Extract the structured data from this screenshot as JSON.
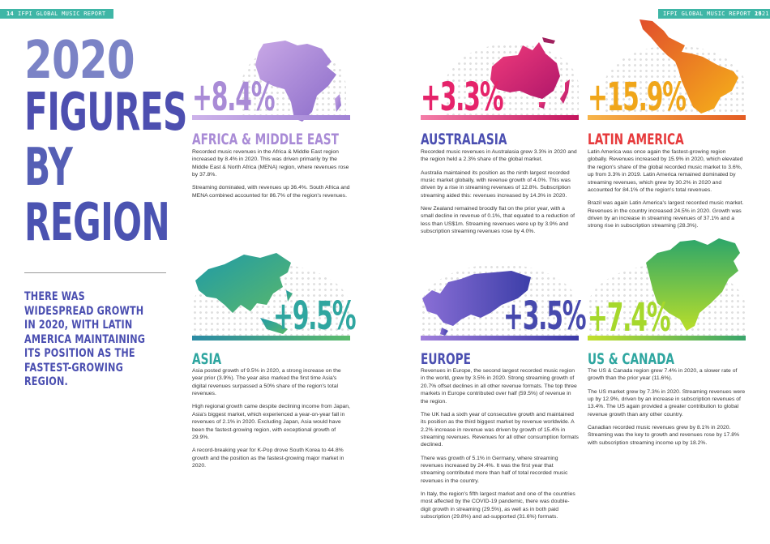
{
  "header": {
    "left_page": "14",
    "right_page": "15",
    "report_title": "IFPI GLOBAL MUSIC REPORT 2021"
  },
  "hero": {
    "line1": "2020",
    "line2": "FIGURES",
    "line3": "BY",
    "line4": "REGION",
    "tagline": "THERE WAS WIDESPREAD GROWTH IN 2020, WITH LATIN AMERICA MAINTAINING ITS POSITION AS THE FASTEST-GROWING REGION."
  },
  "colors": {
    "header_teal": "#3fb6a6",
    "africa": "#a98bd6",
    "australasia": "#e5236a",
    "latin_america": "#f0861a",
    "asia": "#2fa6a0",
    "europe": "#4649ad",
    "us_canada": "#a6d82c"
  },
  "regions": {
    "africa": {
      "percent": "+8.4%",
      "title": "AFRICA & MIDDLE EAST",
      "paras": [
        "Recorded music revenues in the Africa & Middle East region increased by 8.4% in 2020. This was driven primarily by the Middle East & North Africa (MENA) region, where revenues rose by 37.8%.",
        "Streaming dominated, with revenues up 36.4%. South Africa and MENA combined accounted for 86.7% of the region's revenues."
      ]
    },
    "australasia": {
      "percent": "+3.3%",
      "title": "AUSTRALASIA",
      "paras": [
        "Recorded music revenues in Australasia grew 3.3% in 2020 and the region held a 2.3% share of the global market.",
        "Australia maintained its position as the ninth largest recorded music market globally, with revenue growth of 4.0%. This was driven by a rise in streaming revenues of 12.8%. Subscription streaming aided this: revenues increased by 14.3% in 2020.",
        "New Zealand remained broodly flat on the prior year, with a small decline in revenue of 0.1%, that equated to a reduction of less than US$1m. Streaming revenues were up by 3.9% and subscription streaming revenues rose by 4.0%."
      ]
    },
    "latin": {
      "percent": "+15.9%",
      "title": "LATIN AMERICA",
      "paras": [
        "Latin America was once again the fastest-growing region globally. Revenues increased by 15.9% in 2020, which elevated the region's share of the global recorded music market to 3.6%, up from 3.3% in 2019. Latin America remained dominated by streaming revenues, which grew by 30.2% in 2020 and accounted for 84.1% of the region's total revenues.",
        "Brazil was again Latin America's largest recorded music market. Revenues in the country increased 24.5% in 2020. Growth was driven by an increase in streaming revenues of 37.1% and a strong rise in subscription streaming (28.3%)."
      ]
    },
    "asia": {
      "percent": "+9.5%",
      "title": "ASIA",
      "paras": [
        "Asia posted growth of 9.5% in 2020, a strong increase on the year prior (3.9%). The year also marked the first time Asia's digital revenues surpassed a 50% share of the region's total revenues.",
        "High regional growth came despite declining income from Japan, Asia's biggest market, which experienced a year-on-year fall in revenues of 2.1% in 2020. Excluding Japan, Asia would have been the fastest-growing region, with exceptional growth of 29.9%.",
        "A record-breaking year for K-Pop drove South Korea to 44.8% growth and the position as the fastest-growing major market in 2020."
      ]
    },
    "europe": {
      "percent": "+3.5%",
      "title": "EUROPE",
      "paras": [
        "Revenues in Europe, the second largest recorded music region in the world, grew by 3.5% in 2020. Strong streaming growth of 20.7% offset declines in all other revenue formats. The top three markets in Europe contributed over half (59.5%) of revenue in the region.",
        "The UK had a sixth year of consecutive growth and maintained its position as the third biggest market by revenue worldwide. A 2.2% increase in revenue was driven by growth of 15.4% in streaming revenues. Revenues for all other consumption formats declined.",
        "There was growth of 5.1% in Germany, where streaming revenues increased by 24.4%. It was the first year that streaming contributed more than half of total recorded music revenues in the country.",
        "In Italy, the region's fifth largest market and one of the countries most affected by the COVID-19 pandemic, there was double-digit growth in streaming (29.5%), as well as in both paid subscription (29.8%) and ad-supported (31.6%) formats."
      ]
    },
    "us": {
      "percent": "+7.4%",
      "title": "US & CANADA",
      "paras": [
        "The US & Canada region grew 7.4% in 2020, a slower rate of growth than the prior year (11.6%).",
        "The US market grew by 7.3% in 2020. Streaming revenues were up by 12.9%, driven by an increase in subscription revenues of 13.4%. The US again provided a greater contribution to global revenue growth than any other country.",
        "Canadian recorded music revenues grew by 8.1% in 2020. Streaming was the key to growth and revenues rose by 17.8% with subscription streaming income up by 18.2%."
      ]
    }
  }
}
